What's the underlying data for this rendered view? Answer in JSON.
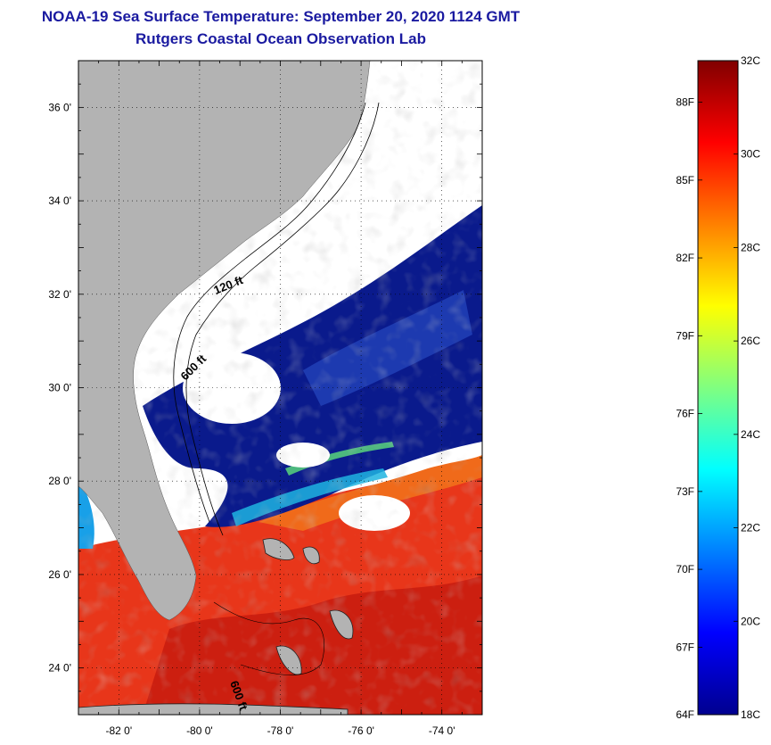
{
  "title": {
    "line1": "NOAA-19 Sea Surface Temperature:  September 20, 2020 1124 GMT",
    "line2": "Rutgers Coastal Ocean Observation Lab"
  },
  "map": {
    "lat_labels": [
      "36 0'",
      "34 0'",
      "32 0'",
      "30 0'",
      "28 0'",
      "26 0'",
      "24 0'"
    ],
    "lat_values": [
      36,
      34,
      32,
      30,
      28,
      26,
      24
    ],
    "lon_labels": [
      "-82 0'",
      "-80 0'",
      "-78 0'",
      "-76 0'",
      "-74 0'"
    ],
    "lon_values": [
      -82,
      -80,
      -78,
      -76,
      -74
    ],
    "lon_range": [
      -83,
      -73
    ],
    "lat_range": [
      23,
      37
    ],
    "contour_labels": [
      "120 ft",
      "600 ft",
      "600 ft"
    ],
    "colors": {
      "land": "#b3b3b3",
      "cloud": "#ffffff",
      "cold_water": "#0a1a8c",
      "warm_water": "#e8361a"
    }
  },
  "colorbar": {
    "min_c": 18,
    "max_c": 32,
    "celsius_labels": [
      "32C",
      "30C",
      "28C",
      "26C",
      "24C",
      "22C",
      "20C",
      "18C"
    ],
    "celsius_values": [
      32,
      30,
      28,
      26,
      24,
      22,
      20,
      18
    ],
    "fahrenheit_labels": [
      "88F",
      "85F",
      "82F",
      "79F",
      "76F",
      "73F",
      "70F",
      "67F",
      "64F"
    ],
    "fahrenheit_values": [
      88,
      85,
      82,
      79,
      76,
      73,
      70,
      67,
      64
    ],
    "colormap": [
      "#00008f",
      "#0000ff",
      "#0080ff",
      "#00ffff",
      "#80ff80",
      "#ffff00",
      "#ff8000",
      "#ff0000",
      "#800000"
    ]
  }
}
